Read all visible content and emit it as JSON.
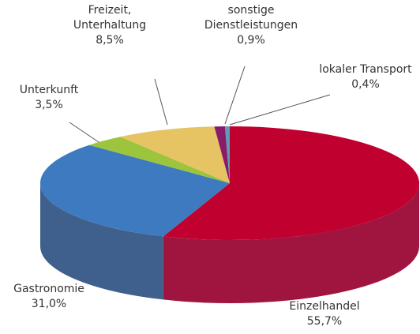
{
  "chart_data": {
    "type": "pie3d",
    "categories": [
      "Einzelhandel",
      "Gastronomie",
      "Unterkunft",
      "Freizeit,\nUnterhaltung",
      "sonstige\nDienstleistungen",
      "lokaler Transport"
    ],
    "values": [
      55.7,
      31.0,
      3.5,
      8.5,
      0.9,
      0.4
    ],
    "value_labels": [
      "55,7%",
      "31,0%",
      "3,5%",
      "8,5%",
      "0,9%",
      "0,4%"
    ],
    "colors": [
      "#c0002e",
      "#3d7abf",
      "#9cc43c",
      "#e6c363",
      "#8b1a6b",
      "#5a9fb5"
    ],
    "side_colors": [
      "#a0153f",
      "#3f5f8c",
      "#7c9c30",
      "#b89a4c",
      "#6a1452",
      "#467d8d"
    ]
  }
}
